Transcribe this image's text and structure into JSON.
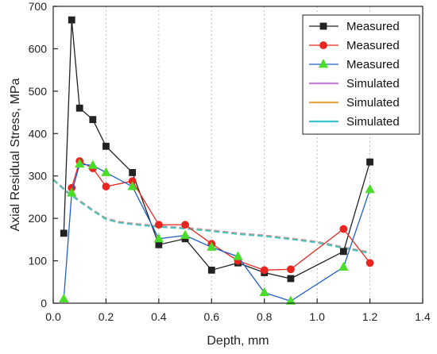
{
  "chart_data": {
    "type": "line",
    "xlabel": "Depth, mm",
    "ylabel": "Axial Residual Stress, MPa",
    "xlim": [
      0.0,
      1.4
    ],
    "ylim": [
      0,
      700
    ],
    "xticks": [
      "0.0",
      "0.2",
      "0.4",
      "0.6",
      "0.8",
      "1.0",
      "1.2",
      "1.4"
    ],
    "yticks": [
      "0",
      "100",
      "200",
      "300",
      "400",
      "500",
      "600",
      "700"
    ],
    "grid": "vertical dashed",
    "legend_position": "top-right",
    "series": [
      {
        "name": "Measured",
        "color": "#222222",
        "marker": "square",
        "x": [
          0.04,
          0.07,
          0.1,
          0.15,
          0.2,
          0.3,
          0.4,
          0.5,
          0.6,
          0.7,
          0.8,
          0.9,
          1.1,
          1.2
        ],
        "y": [
          165,
          668,
          460,
          433,
          370,
          308,
          138,
          152,
          78,
          95,
          72,
          58,
          122,
          333
        ]
      },
      {
        "name": "Measured",
        "color": "#e8251f",
        "marker": "circle",
        "x": [
          0.07,
          0.1,
          0.15,
          0.2,
          0.3,
          0.4,
          0.5,
          0.6,
          0.7,
          0.8,
          0.9,
          1.1,
          1.2
        ],
        "y": [
          272,
          335,
          318,
          275,
          288,
          185,
          185,
          140,
          100,
          78,
          80,
          175,
          95
        ]
      },
      {
        "name": "Measured",
        "color": "#1f5fc8",
        "marker": "triangle",
        "marker_fill": "#4cdd2a",
        "x": [
          0.04,
          0.07,
          0.1,
          0.15,
          0.2,
          0.3,
          0.4,
          0.5,
          0.6,
          0.7,
          0.8,
          0.9,
          1.1,
          1.2
        ],
        "y": [
          10,
          260,
          328,
          325,
          308,
          275,
          152,
          160,
          132,
          110,
          25,
          5,
          85,
          268
        ]
      },
      {
        "name": "Simulated",
        "color": "#c77dd9",
        "marker": "none",
        "x": [
          0.0,
          0.05,
          0.1,
          0.15,
          0.2,
          0.25,
          0.3,
          0.4,
          0.5,
          0.6,
          0.7,
          0.8,
          0.9,
          1.0,
          1.1,
          1.2
        ],
        "y": [
          292,
          265,
          242,
          220,
          200,
          192,
          188,
          182,
          178,
          172,
          165,
          160,
          153,
          145,
          132,
          120
        ]
      },
      {
        "name": "Simulated",
        "color": "#e8a33a",
        "marker": "none",
        "x": [
          0.0,
          0.05,
          0.1,
          0.15,
          0.2,
          0.25,
          0.3,
          0.4,
          0.5,
          0.6,
          0.7,
          0.8,
          0.9,
          1.0,
          1.1,
          1.2
        ],
        "y": [
          292,
          264,
          241,
          219,
          199,
          191,
          187,
          181,
          177,
          171,
          164,
          159,
          152,
          144,
          131,
          119
        ]
      },
      {
        "name": "Simulated",
        "color": "#34c3c9",
        "marker": "none",
        "x": [
          0.0,
          0.05,
          0.1,
          0.15,
          0.2,
          0.25,
          0.3,
          0.4,
          0.5,
          0.6,
          0.7,
          0.8,
          0.9,
          1.0,
          1.1,
          1.2
        ],
        "y": [
          291,
          263,
          240,
          218,
          198,
          190,
          186,
          180,
          176,
          170,
          163,
          158,
          151,
          143,
          130,
          118
        ]
      }
    ]
  }
}
